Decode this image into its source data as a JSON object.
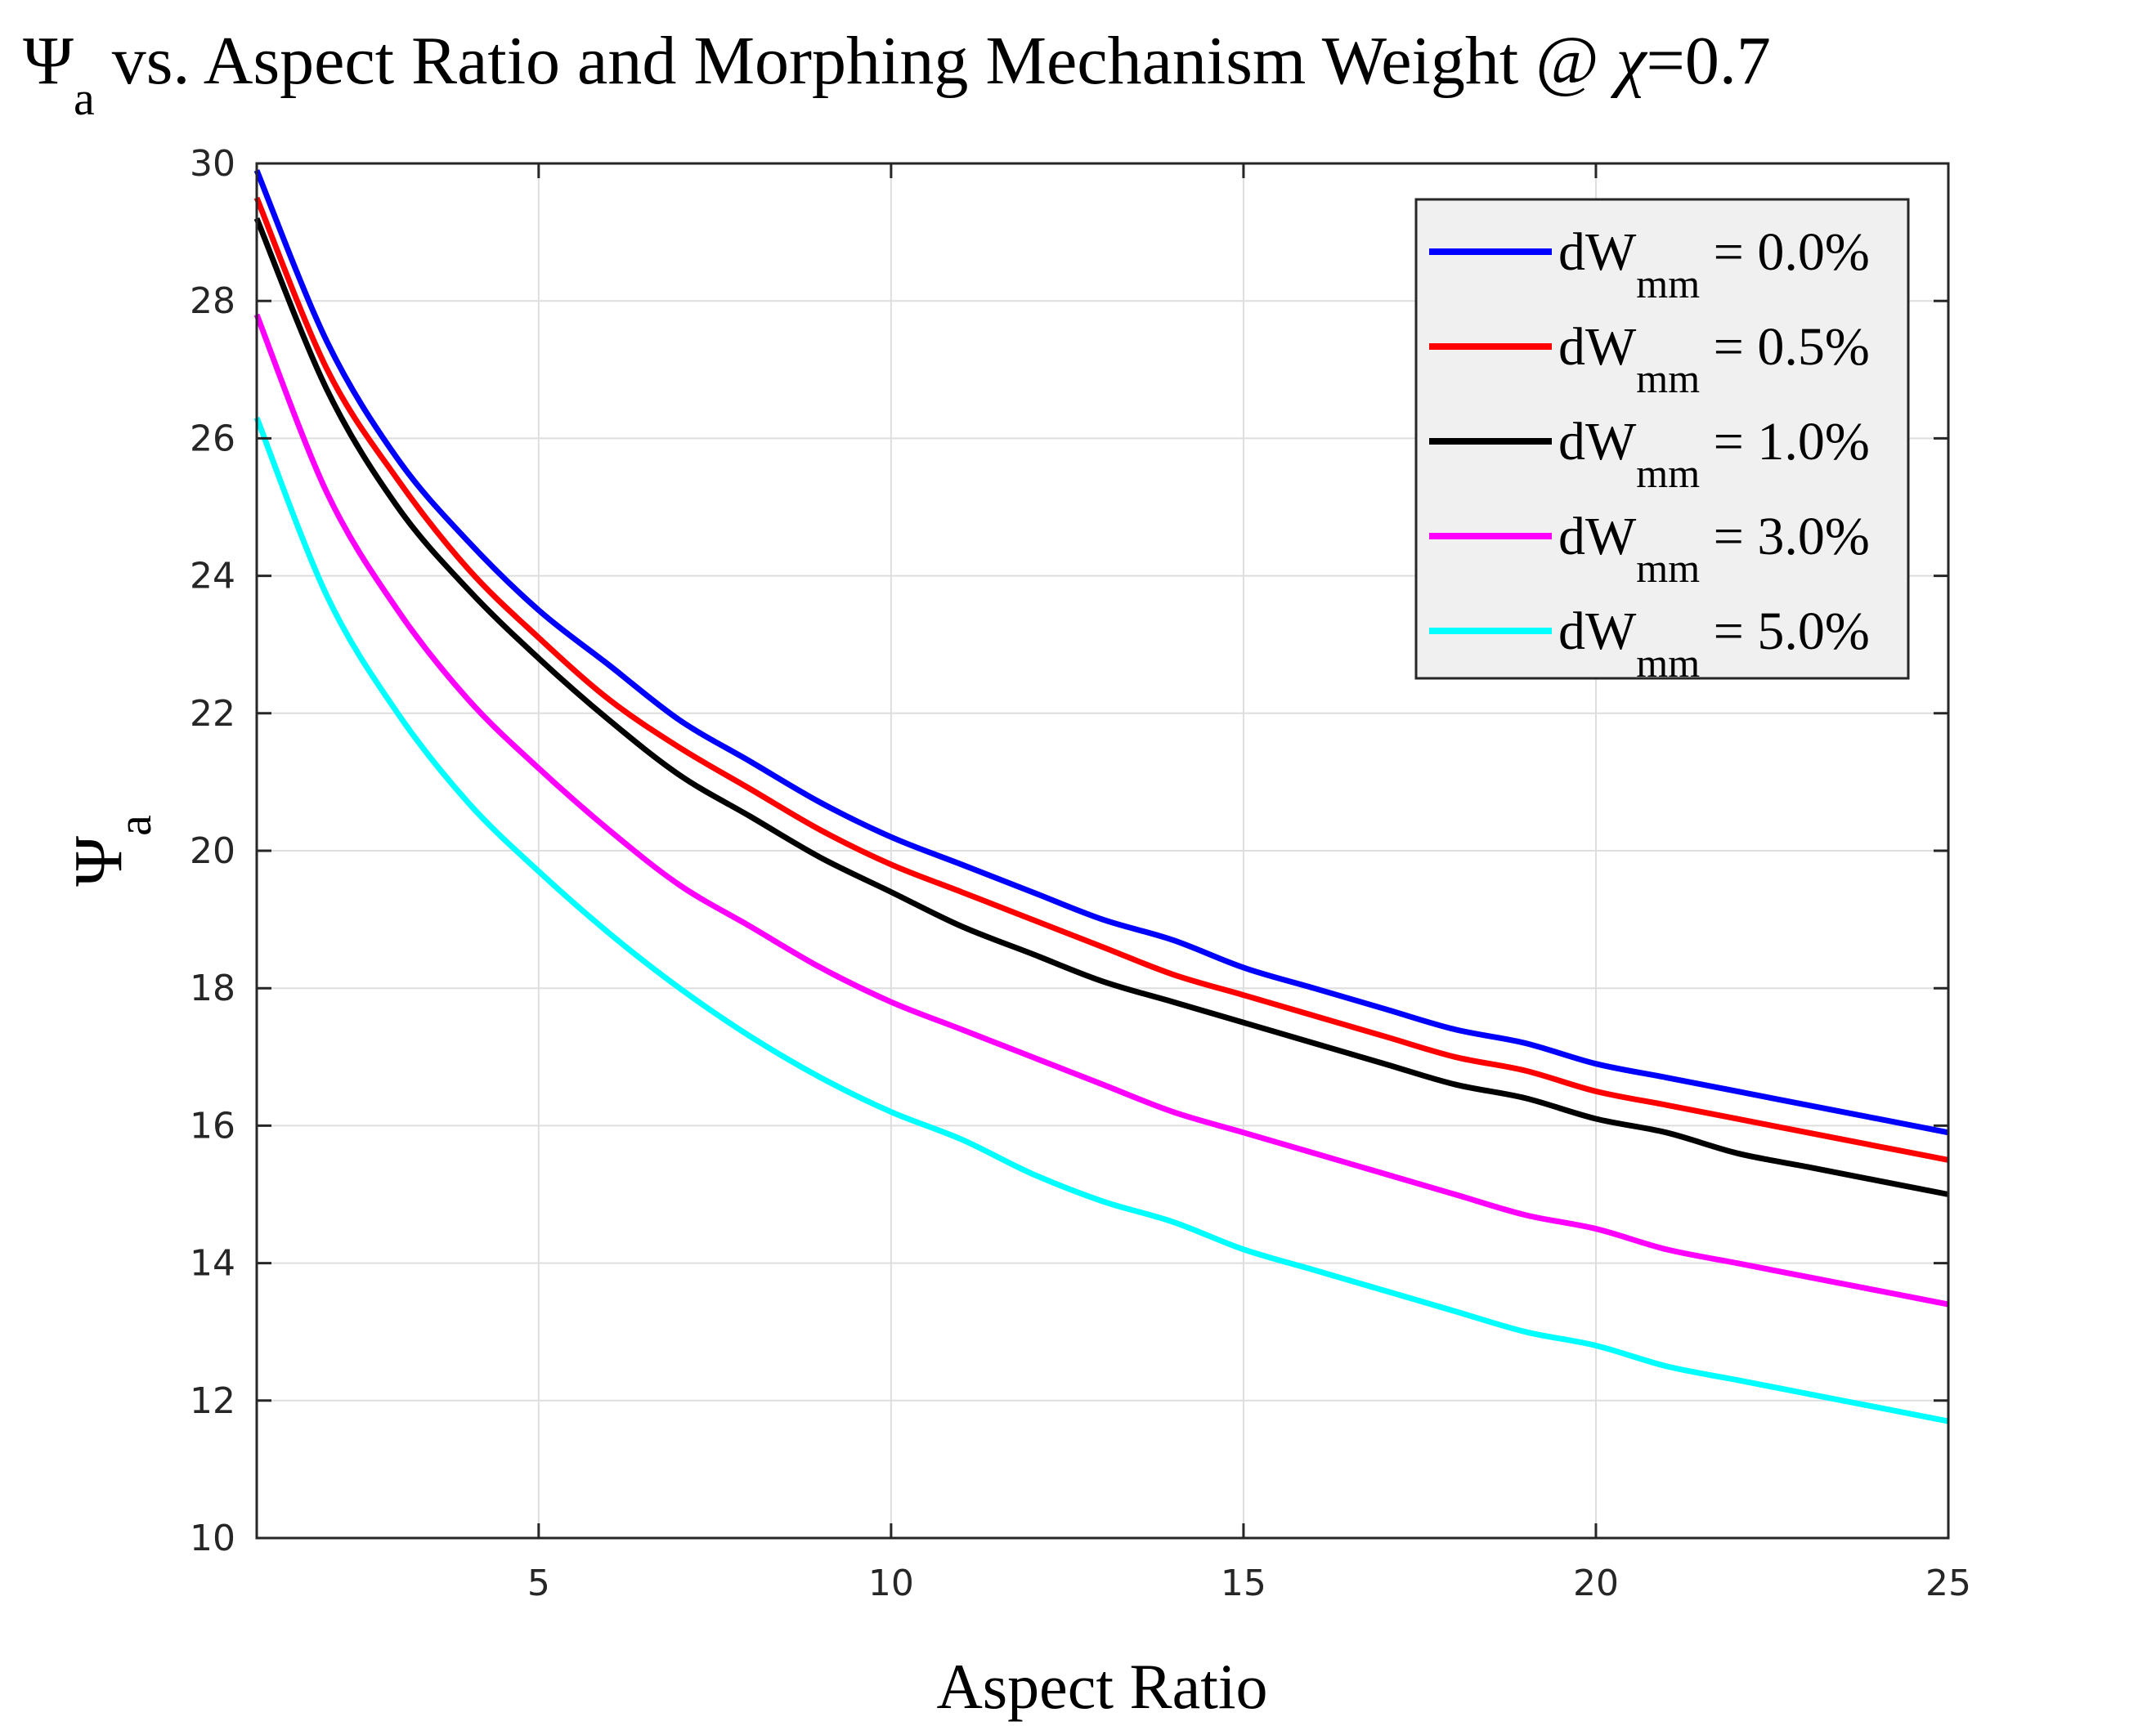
{
  "chart_data": {
    "type": "line",
    "title": {
      "symbol": "Ψ",
      "symbol_sub": "a",
      "text": " vs. Aspect Ratio and Morphing Mechanism Weight @ ",
      "chi": "χ",
      "chi_value": "=0.7"
    },
    "xlabel": "Aspect Ratio",
    "ylabel": {
      "symbol": "Ψ",
      "sub": "a"
    },
    "xlim": [
      1,
      25
    ],
    "ylim": [
      10,
      30
    ],
    "xticks": [
      5,
      10,
      15,
      20,
      25
    ],
    "xtick_labels": [
      "5",
      "10",
      "15",
      "20",
      "25"
    ],
    "yticks": [
      10,
      12,
      14,
      16,
      18,
      20,
      22,
      24,
      26,
      28,
      30
    ],
    "ytick_labels": [
      "10",
      "12",
      "14",
      "16",
      "18",
      "20",
      "22",
      "24",
      "26",
      "28",
      "30"
    ],
    "grid": true,
    "legend_position": "top-right",
    "x": [
      1,
      2,
      3,
      4,
      5,
      6,
      7,
      8,
      9,
      10,
      11,
      12,
      13,
      14,
      15,
      16,
      17,
      18,
      19,
      20,
      21,
      22,
      23,
      24,
      25
    ],
    "series": [
      {
        "name": "dW_mm = 0.0%",
        "label_main": "dW",
        "label_sub": "mm",
        "label_value": " = 0.0%",
        "color": "#0000ff",
        "values": [
          29.9,
          27.4,
          25.7,
          24.5,
          23.5,
          22.7,
          21.9,
          21.3,
          20.7,
          20.2,
          19.8,
          19.4,
          19.0,
          18.7,
          18.3,
          18.0,
          17.7,
          17.4,
          17.2,
          16.9,
          16.7,
          16.5,
          16.3,
          16.1,
          15.9
        ]
      },
      {
        "name": "dW_mm = 0.5%",
        "label_main": "dW",
        "label_sub": "mm",
        "label_value": " = 0.5%",
        "color": "#ff0000",
        "values": [
          29.5,
          27.0,
          25.4,
          24.1,
          23.1,
          22.2,
          21.5,
          20.9,
          20.3,
          19.8,
          19.4,
          19.0,
          18.6,
          18.2,
          17.9,
          17.6,
          17.3,
          17.0,
          16.8,
          16.5,
          16.3,
          16.1,
          15.9,
          15.7,
          15.5
        ]
      },
      {
        "name": "dW_mm = 1.0%",
        "label_main": "dW",
        "label_sub": "mm",
        "label_value": " = 1.0%",
        "color": "#000000",
        "values": [
          29.2,
          26.7,
          25.0,
          23.8,
          22.8,
          21.9,
          21.1,
          20.5,
          19.9,
          19.4,
          18.9,
          18.5,
          18.1,
          17.8,
          17.5,
          17.2,
          16.9,
          16.6,
          16.4,
          16.1,
          15.9,
          15.6,
          15.4,
          15.2,
          15.0
        ]
      },
      {
        "name": "dW_mm = 3.0%",
        "label_main": "dW",
        "label_sub": "mm",
        "label_value": " = 3.0%",
        "color": "#ff00ff",
        "values": [
          27.8,
          25.2,
          23.5,
          22.2,
          21.2,
          20.3,
          19.5,
          18.9,
          18.3,
          17.8,
          17.4,
          17.0,
          16.6,
          16.2,
          15.9,
          15.6,
          15.3,
          15.0,
          14.7,
          14.5,
          14.2,
          14.0,
          13.8,
          13.6,
          13.4
        ]
      },
      {
        "name": "dW_mm = 5.0%",
        "label_main": "dW",
        "label_sub": "mm",
        "label_value": " = 5.0%",
        "color": "#00ffff",
        "values": [
          26.3,
          23.7,
          22.0,
          20.7,
          19.7,
          18.8,
          18.0,
          17.3,
          16.7,
          16.2,
          15.8,
          15.3,
          14.9,
          14.6,
          14.2,
          13.9,
          13.6,
          13.3,
          13.0,
          12.8,
          12.5,
          12.3,
          12.1,
          11.9,
          11.7
        ]
      }
    ]
  }
}
